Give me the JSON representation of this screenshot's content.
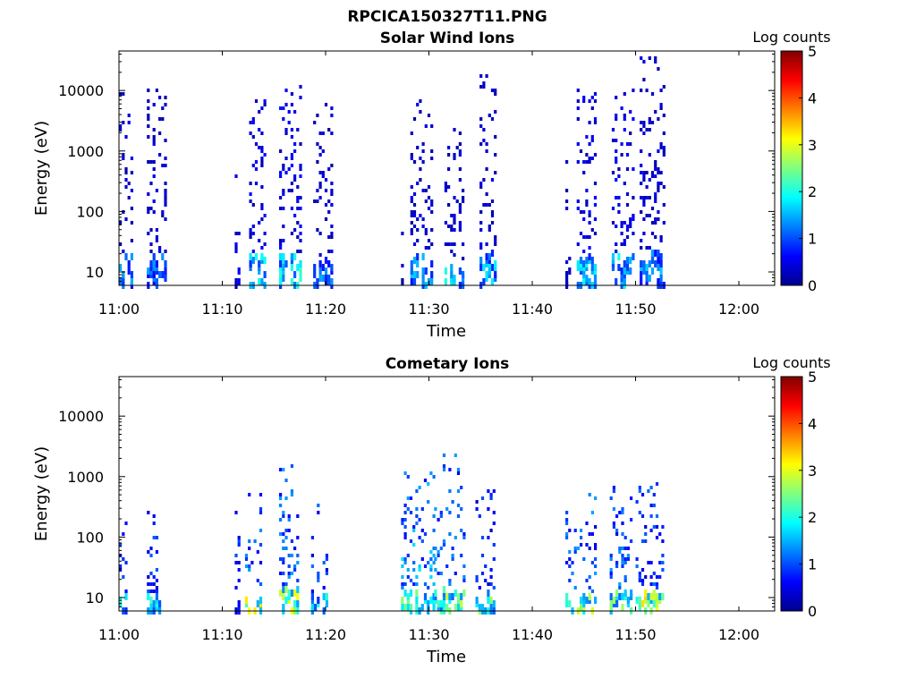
{
  "figure": {
    "title": "RPCICA150327T11.PNG"
  },
  "colorbar": {
    "label": "Log counts",
    "range": [
      0,
      5
    ],
    "ticks": [
      "0",
      "1",
      "2",
      "3",
      "4",
      "5"
    ],
    "colormap": "jet"
  },
  "chart_data": [
    {
      "type": "heatmap",
      "title": "Solar Wind Ions",
      "xlabel": "Time",
      "ylabel": "Energy (eV)",
      "x_ticks": [
        "11:00",
        "11:10",
        "11:20",
        "11:30",
        "11:40",
        "11:50",
        "12:00"
      ],
      "y_ticks": [
        "10",
        "100",
        "1000",
        "10000"
      ],
      "y_scale": "log",
      "ylim": [
        6,
        45000
      ],
      "xlim_minutes": [
        0,
        63
      ],
      "grid": false,
      "bursts": [
        {
          "start_min": 0.0,
          "end_min": 1.3,
          "lo_count": 1.2,
          "hi_count": 0.3,
          "top_energy": 10000
        },
        {
          "start_min": 2.7,
          "end_min": 4.5,
          "lo_count": 1.1,
          "hi_count": 0.3,
          "top_energy": 13000
        },
        {
          "start_min": 11.2,
          "end_min": 11.6,
          "lo_count": 0.6,
          "hi_count": 0.4,
          "top_energy": 450
        },
        {
          "start_min": 12.6,
          "end_min": 14.0,
          "lo_count": 1.6,
          "hi_count": 0.4,
          "top_energy": 10000
        },
        {
          "start_min": 15.5,
          "end_min": 17.7,
          "lo_count": 1.7,
          "hi_count": 0.4,
          "top_energy": 13000
        },
        {
          "start_min": 18.8,
          "end_min": 20.7,
          "lo_count": 1.2,
          "hi_count": 0.3,
          "top_energy": 7000
        },
        {
          "start_min": 27.3,
          "end_min": 27.5,
          "lo_count": 0.3,
          "hi_count": 0.3,
          "top_energy": 700
        },
        {
          "start_min": 28.2,
          "end_min": 30.2,
          "lo_count": 1.3,
          "hi_count": 0.3,
          "top_energy": 12000
        },
        {
          "start_min": 31.5,
          "end_min": 33.2,
          "lo_count": 1.6,
          "hi_count": 0.3,
          "top_energy": 3000
        },
        {
          "start_min": 34.9,
          "end_min": 36.3,
          "lo_count": 1.4,
          "hi_count": 0.3,
          "top_energy": 24000
        },
        {
          "start_min": 43.2,
          "end_min": 43.5,
          "lo_count": 0.3,
          "hi_count": 0.3,
          "top_energy": 800
        },
        {
          "start_min": 44.3,
          "end_min": 46.1,
          "lo_count": 1.5,
          "hi_count": 0.4,
          "top_energy": 12000
        },
        {
          "start_min": 47.7,
          "end_min": 49.9,
          "lo_count": 1.6,
          "hi_count": 0.4,
          "top_energy": 12000
        },
        {
          "start_min": 50.4,
          "end_min": 52.7,
          "lo_count": 1.3,
          "hi_count": 0.3,
          "top_energy": 38000
        }
      ]
    },
    {
      "type": "heatmap",
      "title": "Cometary Ions",
      "xlabel": "Time",
      "ylabel": "Energy (eV)",
      "x_ticks": [
        "11:00",
        "11:10",
        "11:20",
        "11:30",
        "11:40",
        "11:50",
        "12:00"
      ],
      "y_ticks": [
        "10",
        "100",
        "1000",
        "10000"
      ],
      "y_scale": "log",
      "ylim": [
        6,
        45000
      ],
      "xlim_minutes": [
        0,
        63
      ],
      "grid": false,
      "bursts": [
        {
          "start_min": 0.0,
          "end_min": 0.8,
          "lo_count": 1.7,
          "hi_count": 0.6,
          "top_energy": 600
        },
        {
          "start_min": 2.7,
          "end_min": 3.9,
          "lo_count": 1.8,
          "hi_count": 0.6,
          "top_energy": 500
        },
        {
          "start_min": 11.2,
          "end_min": 11.6,
          "lo_count": 0.8,
          "hi_count": 0.6,
          "top_energy": 300
        },
        {
          "start_min": 12.2,
          "end_min": 13.8,
          "lo_count": 2.6,
          "hi_count": 0.8,
          "top_energy": 600
        },
        {
          "start_min": 15.5,
          "end_min": 17.3,
          "lo_count": 2.4,
          "hi_count": 0.8,
          "top_energy": 1700
        },
        {
          "start_min": 18.6,
          "end_min": 20.0,
          "lo_count": 1.6,
          "hi_count": 0.7,
          "top_energy": 400
        },
        {
          "start_min": 27.3,
          "end_min": 30.4,
          "lo_count": 2.0,
          "hi_count": 1.0,
          "top_energy": 1300
        },
        {
          "start_min": 30.5,
          "end_min": 33.5,
          "lo_count": 2.2,
          "hi_count": 0.8,
          "top_energy": 2600
        },
        {
          "start_min": 34.5,
          "end_min": 36.3,
          "lo_count": 2.1,
          "hi_count": 0.6,
          "top_energy": 800
        },
        {
          "start_min": 43.2,
          "end_min": 46.2,
          "lo_count": 2.3,
          "hi_count": 0.8,
          "top_energy": 600
        },
        {
          "start_min": 47.5,
          "end_min": 49.6,
          "lo_count": 2.2,
          "hi_count": 0.8,
          "top_energy": 800
        },
        {
          "start_min": 50.0,
          "end_min": 52.7,
          "lo_count": 2.7,
          "hi_count": 0.7,
          "top_energy": 1000
        }
      ]
    }
  ]
}
